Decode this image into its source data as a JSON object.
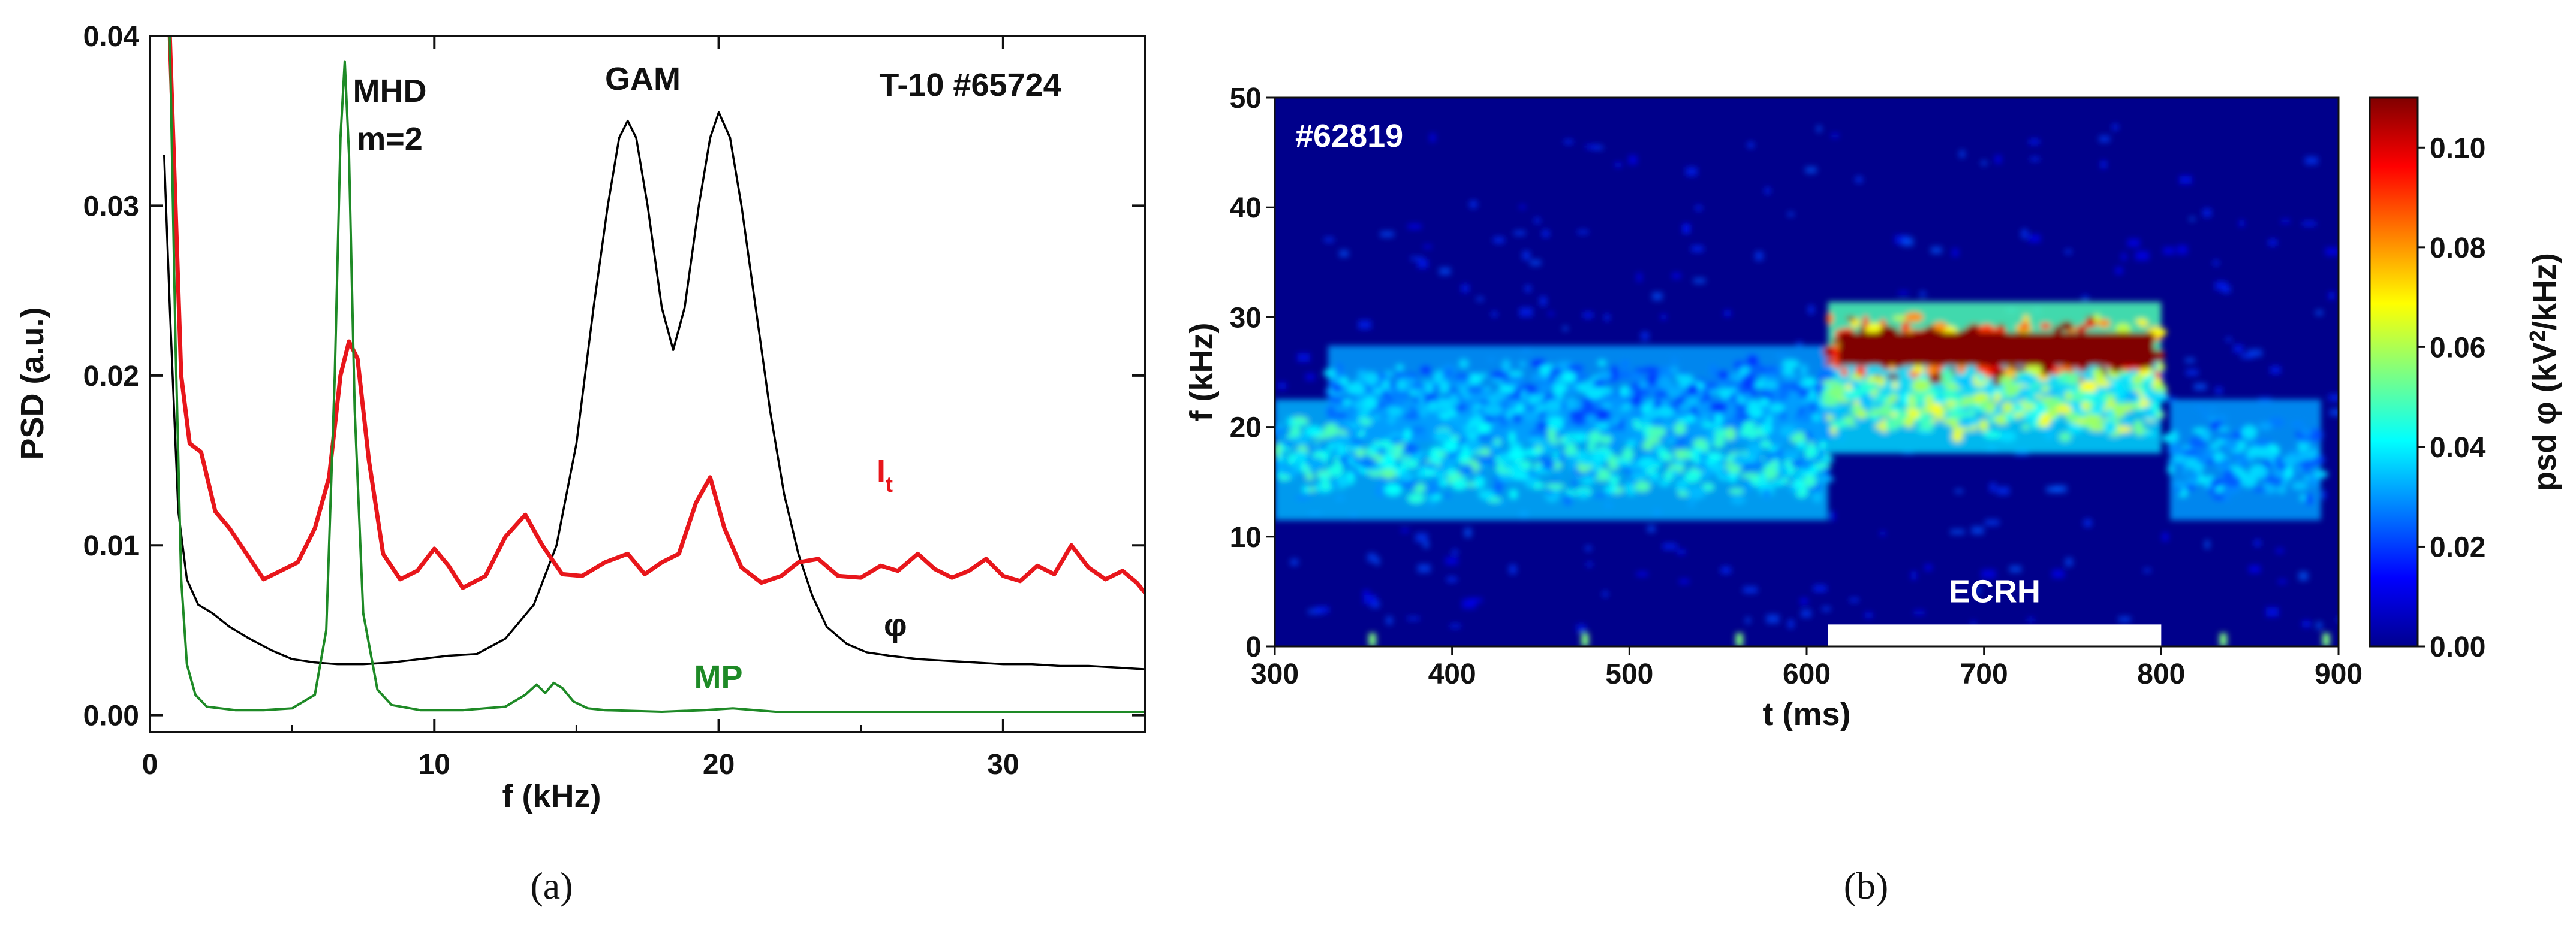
{
  "chart_data": [
    {
      "type": "line",
      "panel": "(a)",
      "title": "T-10 #65724",
      "xlabel": "f (kHz)",
      "ylabel": "PSD (a.u.)",
      "xlim": [
        0,
        35
      ],
      "ylim": [
        -0.001,
        0.04
      ],
      "xticks": [
        0,
        10,
        20,
        30
      ],
      "yticks": [
        0.0,
        0.01,
        0.02,
        0.03,
        0.04
      ],
      "ytick_labels": [
        "0.00",
        "0.01",
        "0.02",
        "0.03",
        "0.04"
      ],
      "annotations": {
        "mhd_line1": "MHD",
        "mhd_line2": "m=2",
        "gam": "GAM",
        "shot": "T-10 #65724",
        "it_main": "I",
        "it_sub": "t",
        "phi": "φ",
        "mp": "MP"
      },
      "series": [
        {
          "name": "It",
          "color": "#e8161b",
          "x": [
            0.7,
            0.9,
            1.1,
            1.4,
            1.8,
            2.3,
            2.8,
            3.4,
            4.0,
            4.6,
            5.2,
            5.8,
            6.3,
            6.7,
            7.0,
            7.3,
            7.7,
            8.2,
            8.8,
            9.4,
            10.0,
            10.5,
            11.0,
            11.8,
            12.5,
            13.2,
            13.8,
            14.5,
            15.2,
            16.0,
            16.8,
            17.4,
            18.0,
            18.6,
            19.2,
            19.7,
            20.2,
            20.8,
            21.5,
            22.2,
            22.8,
            23.5,
            24.2,
            25.0,
            25.7,
            26.3,
            27.0,
            27.6,
            28.2,
            28.8,
            29.4,
            30.0,
            30.6,
            31.2,
            31.8,
            32.4,
            33.0,
            33.6,
            34.2,
            34.7,
            35.0
          ],
          "y": [
            0.04,
            0.03,
            0.02,
            0.016,
            0.0155,
            0.012,
            0.011,
            0.0095,
            0.008,
            0.0085,
            0.009,
            0.011,
            0.014,
            0.02,
            0.022,
            0.021,
            0.015,
            0.0095,
            0.008,
            0.0085,
            0.0098,
            0.0088,
            0.0075,
            0.0082,
            0.0105,
            0.0118,
            0.01,
            0.0083,
            0.0082,
            0.009,
            0.0095,
            0.0083,
            0.009,
            0.0095,
            0.0125,
            0.014,
            0.011,
            0.0087,
            0.0078,
            0.0082,
            0.009,
            0.0092,
            0.0082,
            0.0081,
            0.0088,
            0.0085,
            0.0095,
            0.0086,
            0.0081,
            0.0085,
            0.0092,
            0.0082,
            0.0079,
            0.0088,
            0.0083,
            0.01,
            0.0087,
            0.008,
            0.0085,
            0.0078,
            0.0072
          ]
        },
        {
          "name": "φ",
          "color": "#000000",
          "x": [
            0.5,
            0.7,
            1.0,
            1.3,
            1.7,
            2.2,
            2.8,
            3.5,
            4.3,
            5.0,
            5.8,
            6.6,
            7.5,
            8.5,
            9.5,
            10.5,
            11.5,
            12.5,
            13.5,
            14.3,
            15.0,
            15.6,
            16.1,
            16.5,
            16.8,
            17.1,
            17.5,
            18.0,
            18.4,
            18.8,
            19.3,
            19.7,
            20.0,
            20.4,
            20.8,
            21.3,
            21.8,
            22.3,
            22.8,
            23.3,
            23.8,
            24.5,
            25.2,
            26.0,
            27.0,
            28.0,
            29.0,
            30.0,
            31.0,
            32.0,
            33.0,
            34.0,
            35.0
          ],
          "y": [
            0.033,
            0.024,
            0.012,
            0.008,
            0.0065,
            0.006,
            0.0052,
            0.0045,
            0.0038,
            0.0033,
            0.0031,
            0.003,
            0.003,
            0.0031,
            0.0033,
            0.0035,
            0.0036,
            0.0045,
            0.0065,
            0.01,
            0.016,
            0.024,
            0.03,
            0.034,
            0.035,
            0.034,
            0.03,
            0.024,
            0.0215,
            0.024,
            0.03,
            0.034,
            0.0355,
            0.034,
            0.03,
            0.024,
            0.018,
            0.013,
            0.0095,
            0.007,
            0.0052,
            0.0042,
            0.0037,
            0.0035,
            0.0033,
            0.0032,
            0.0031,
            0.003,
            0.003,
            0.0029,
            0.0029,
            0.0028,
            0.0027
          ]
        },
        {
          "name": "MP",
          "color": "#1e8a26",
          "x": [
            0.3,
            0.5,
            0.7,
            0.9,
            1.1,
            1.3,
            1.6,
            2.0,
            3.0,
            4.0,
            5.0,
            5.8,
            6.2,
            6.5,
            6.7,
            6.85,
            7.0,
            7.2,
            7.5,
            8.0,
            8.5,
            9.5,
            11.0,
            12.5,
            13.2,
            13.6,
            13.9,
            14.2,
            14.5,
            14.9,
            15.4,
            16.0,
            18.0,
            19.5,
            20.5,
            22.0,
            25.0,
            30.0,
            35.0
          ],
          "y": [
            0.04,
            0.04,
            0.04,
            0.022,
            0.008,
            0.003,
            0.0012,
            0.0005,
            0.0003,
            0.0003,
            0.0004,
            0.0012,
            0.005,
            0.02,
            0.034,
            0.0385,
            0.033,
            0.018,
            0.006,
            0.0015,
            0.0006,
            0.0003,
            0.0003,
            0.0005,
            0.0012,
            0.0018,
            0.0013,
            0.0019,
            0.0016,
            0.0008,
            0.0004,
            0.0003,
            0.0002,
            0.0003,
            0.0004,
            0.0002,
            0.0002,
            0.0002,
            0.0002
          ]
        }
      ]
    },
    {
      "type": "heatmap",
      "panel": "(b)",
      "title": "#62819",
      "xlabel": "t (ms)",
      "ylabel": "f (kHz)",
      "xlim": [
        300,
        900
      ],
      "ylim": [
        0,
        50
      ],
      "xticks": [
        300,
        400,
        500,
        600,
        700,
        800,
        900
      ],
      "yticks": [
        0,
        10,
        20,
        30,
        40,
        50
      ],
      "colorbar": {
        "label_main": "psd φ (kV",
        "label_sup": "2",
        "label_end": "/kHz)",
        "range": [
          0,
          0.11
        ],
        "ticks": [
          0.0,
          0.02,
          0.04,
          0.06,
          0.08,
          0.1
        ],
        "tick_labels": [
          "0.00",
          "0.02",
          "0.04",
          "0.06",
          "0.08",
          "0.10"
        ]
      },
      "ecrh": {
        "label": "ECRH",
        "t_start": 612,
        "t_end": 800
      },
      "bands": [
        {
          "t_start": 300,
          "t_end": 612,
          "f_center": 17,
          "f_halfwidth": 2.5,
          "intensity": 0.045,
          "note": "lower band before ECRH"
        },
        {
          "t_start": 330,
          "t_end": 612,
          "f_center": 23,
          "f_halfwidth": 2.0,
          "intensity": 0.035,
          "note": "upper band before ECRH"
        },
        {
          "t_start": 612,
          "t_end": 800,
          "f_center": 27,
          "f_halfwidth": 2.0,
          "intensity": 0.11,
          "note": "GAM during ECRH"
        },
        {
          "t_start": 612,
          "t_end": 800,
          "f_center": 22,
          "f_halfwidth": 2.0,
          "intensity": 0.06,
          "note": "secondary band during ECRH"
        },
        {
          "t_start": 805,
          "t_end": 890,
          "f_center": 17,
          "f_halfwidth": 2.5,
          "intensity": 0.035,
          "note": "band after ECRH"
        }
      ]
    }
  ],
  "captions": {
    "a": "(a)",
    "b": "(b)"
  }
}
